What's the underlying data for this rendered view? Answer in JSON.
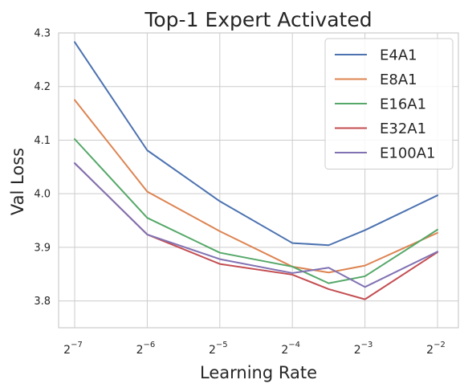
{
  "chart_data": {
    "type": "line",
    "title": "Top-1 Expert Activated",
    "xlabel": "Learning Rate",
    "ylabel": "Val Loss",
    "x_scale": "log2",
    "x_ticks": [
      {
        "base": "2",
        "exp": "−7",
        "value": 0.0078125
      },
      {
        "base": "2",
        "exp": "−6",
        "value": 0.015625
      },
      {
        "base": "2",
        "exp": "−5",
        "value": 0.03125
      },
      {
        "base": "2",
        "exp": "−4",
        "value": 0.0625
      },
      {
        "base": "2",
        "exp": "−3",
        "value": 0.125
      },
      {
        "base": "2",
        "exp": "−2",
        "value": 0.25
      }
    ],
    "y_ticks": [
      "3.8",
      "3.9",
      "4.0",
      "4.1",
      "4.2",
      "4.3"
    ],
    "ylim": [
      3.75,
      4.3
    ],
    "grid": true,
    "legend_position": "top-right",
    "x": [
      0.0078125,
      0.015625,
      0.03125,
      0.0625,
      0.0884,
      0.125,
      0.25
    ],
    "series": [
      {
        "name": "E4A1",
        "color": "#4c72b0",
        "values": [
          4.283,
          4.081,
          3.986,
          3.908,
          3.904,
          3.932,
          3.997
        ]
      },
      {
        "name": "E8A1",
        "color": "#dd8452",
        "values": [
          4.175,
          4.004,
          3.93,
          3.864,
          3.853,
          3.866,
          3.927
        ]
      },
      {
        "name": "E16A1",
        "color": "#55a868",
        "values": [
          4.102,
          3.955,
          3.89,
          3.864,
          3.833,
          3.846,
          3.933
        ]
      },
      {
        "name": "E32A1",
        "color": "#c44e52",
        "values": [
          4.057,
          3.924,
          3.869,
          3.849,
          3.822,
          3.803,
          3.891
        ]
      },
      {
        "name": "E100A1",
        "color": "#8172b3",
        "values": [
          4.057,
          3.924,
          3.878,
          3.852,
          3.862,
          3.826,
          3.892
        ]
      }
    ]
  }
}
